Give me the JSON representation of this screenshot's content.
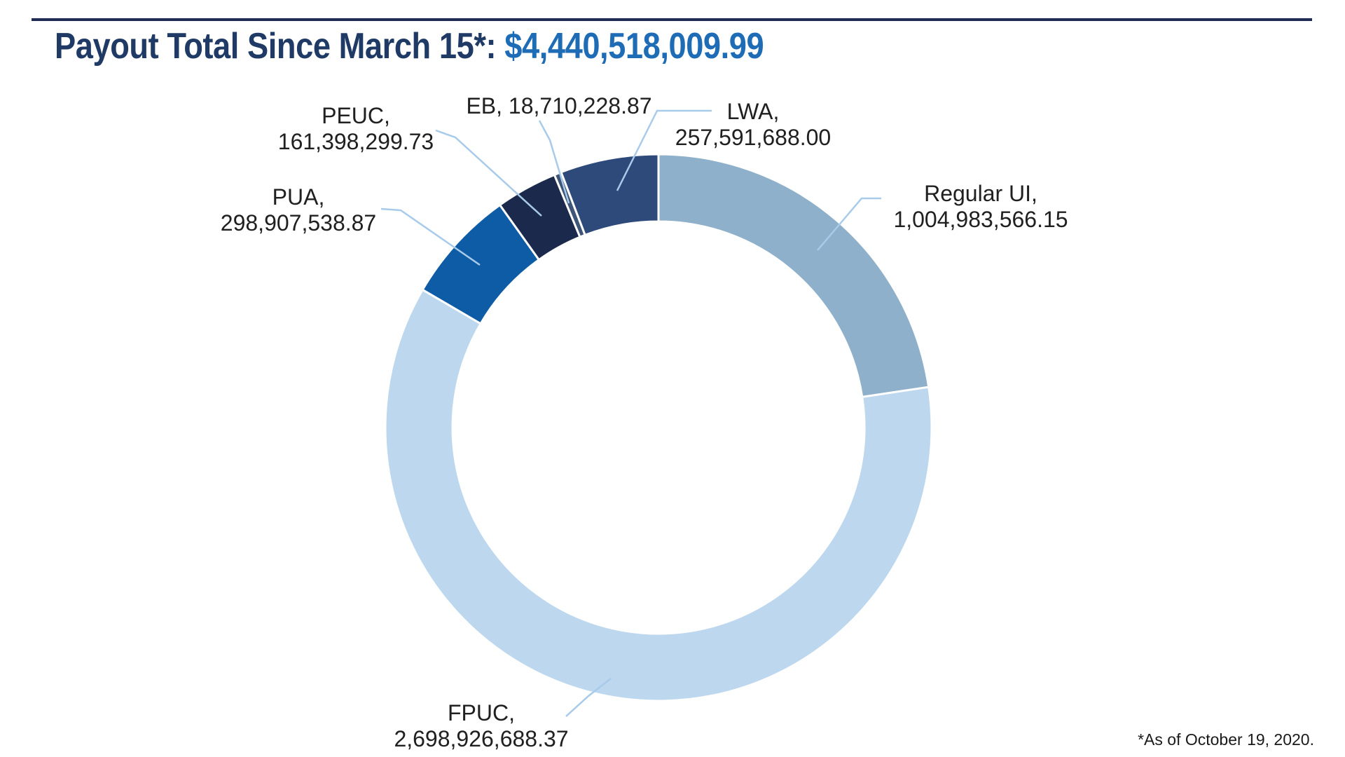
{
  "header": {
    "title_prefix": "Payout Total Since March 15*: ",
    "title_amount": "$4,440,518,009.99",
    "title_prefix_color": "#203A66",
    "title_amount_color": "#1E6CB5",
    "rule_color": "#212C55"
  },
  "footnote": "*As of October 19, 2020.",
  "chart_data": {
    "type": "donut",
    "title": "Payout Total Since March 15*: $4,440,518,009.99",
    "total": 4440518009.99,
    "start_angle_deg": 0,
    "direction": "clockwise",
    "inner_radius_ratio": 0.754,
    "legend_position": "none",
    "categories": [
      "Regular UI",
      "FPUC",
      "PUA",
      "PEUC",
      "EB",
      "LWA"
    ],
    "values": [
      1004983566.15,
      2698926688.37,
      298907538.87,
      161398299.73,
      18710228.87,
      257591688.0
    ],
    "colors": [
      "#8EB0CA",
      "#BDD7EE",
      "#0E5CA6",
      "#1B2A4C",
      "#3F5577",
      "#2D4A7A"
    ],
    "labels": [
      {
        "lines": [
          "Regular UI,",
          "1,004,983,566.15"
        ]
      },
      {
        "lines": [
          "FPUC,",
          "2,698,926,688.37"
        ]
      },
      {
        "lines": [
          "PUA,",
          "298,907,538.87"
        ]
      },
      {
        "lines": [
          "PEUC,",
          "161,398,299.73"
        ]
      },
      {
        "lines": [
          "EB, 18,710,228.87"
        ]
      },
      {
        "lines": [
          "LWA,",
          "257,591,688.00"
        ]
      }
    ],
    "leader_line_color": "#A9CBEA",
    "label_color": "#202020",
    "slice_border_color": "#FFFFFF"
  }
}
